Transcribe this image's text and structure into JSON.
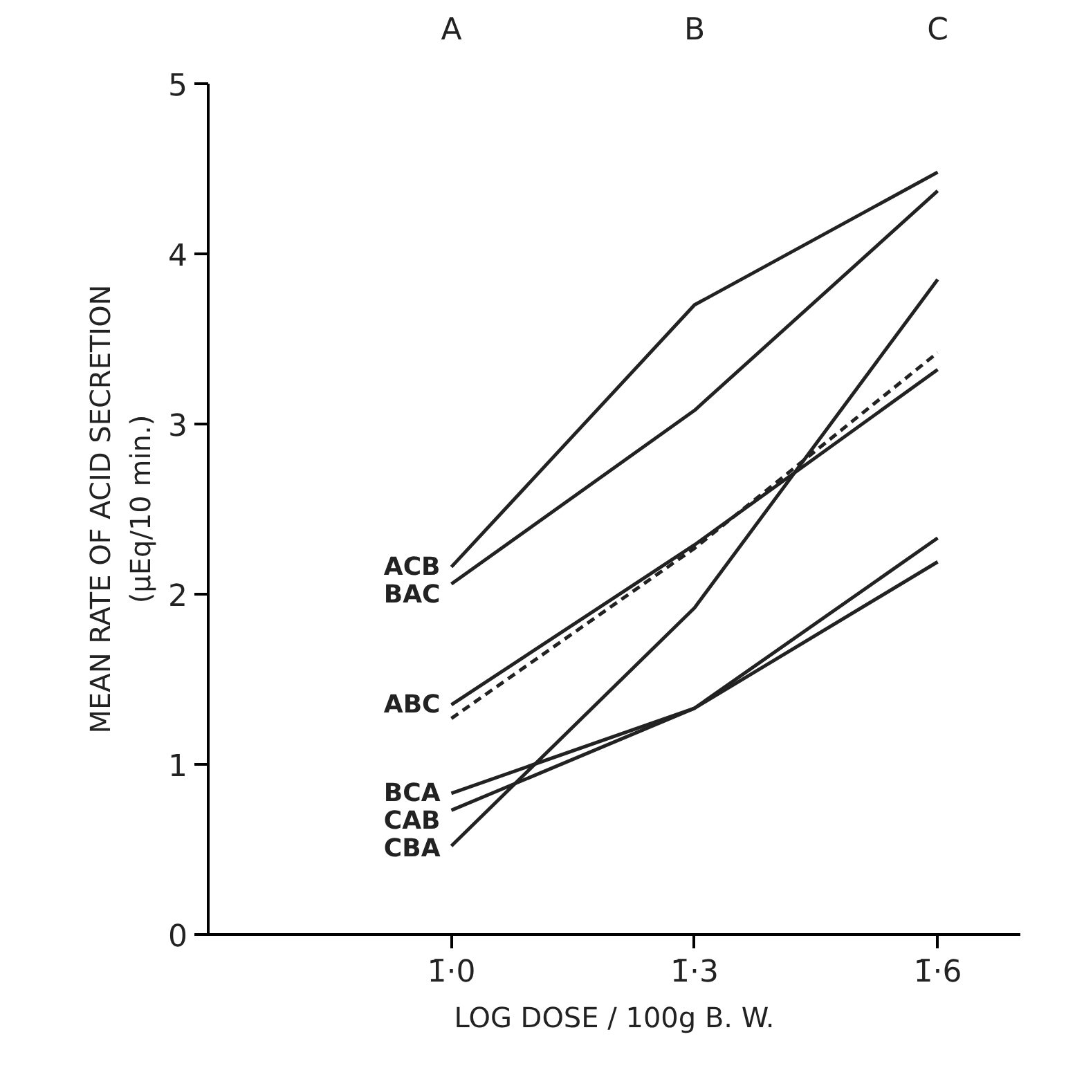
{
  "chart_data": {
    "type": "line",
    "xlabel": "LOG DOSE / 100g B. W.",
    "ylabel": "MEAN RATE OF ACID SECRETION\n(μEq/10 min.)",
    "categories": [
      "1̄·0",
      "1̄·3",
      "1̄·6"
    ],
    "annotations": [
      "A",
      "B",
      "C"
    ],
    "ylim": [
      0,
      5
    ],
    "yticks": [
      0,
      1,
      2,
      3,
      4,
      5
    ],
    "grid": false,
    "legend": false,
    "marker": "none",
    "line_style": "solid",
    "series": [
      {
        "name": "ACB",
        "color": "#222222",
        "values": [
          2.16,
          3.7,
          4.48
        ]
      },
      {
        "name": "BAC",
        "color": "#222222",
        "values": [
          2.06,
          3.08,
          4.37
        ]
      },
      {
        "name": "ABC",
        "color": "#222222",
        "values": [
          1.35,
          2.29,
          3.32
        ]
      },
      {
        "color": "#222222",
        "line_style": "dashed",
        "values": [
          1.27,
          2.27,
          3.42
        ]
      },
      {
        "name": "BCA",
        "color": "#222222",
        "values": [
          0.83,
          1.33,
          2.33
        ]
      },
      {
        "name": "CAB",
        "color": "#222222",
        "values": [
          0.73,
          1.33,
          2.19
        ]
      },
      {
        "name": "CBA",
        "color": "#222222",
        "values": [
          0.52,
          1.92,
          3.85
        ]
      }
    ]
  }
}
